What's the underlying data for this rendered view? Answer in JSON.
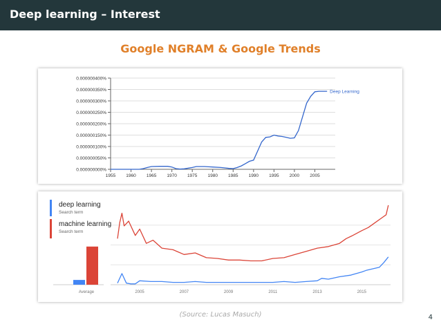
{
  "header": {
    "title": "Deep learning – Interest"
  },
  "subtitle": "Google NGRAM & Google Trends",
  "chart_data": [
    {
      "type": "line",
      "title": "",
      "xlabel": "",
      "ylabel": "",
      "x_ticks": [
        "1955",
        "1960",
        "1965",
        "1970",
        "1975",
        "1980",
        "1985",
        "1990",
        "1995",
        "2000",
        "2005"
      ],
      "y_ticks": [
        "0.000000000%",
        "0.000000050%",
        "0.000000100%",
        "0.000000150%",
        "0.000000200%",
        "0.000000250%",
        "0.000000300%",
        "0.000000350%",
        "0.000000400%"
      ],
      "xlim": [
        1955,
        2010
      ],
      "ylim": [
        0,
        4e-07
      ],
      "series": [
        {
          "name": "Deep Learning",
          "color": "#3366cc",
          "x": [
            1955,
            1962,
            1963,
            1964,
            1965,
            1967,
            1969,
            1970,
            1971,
            1972,
            1973,
            1975,
            1976,
            1977,
            1978,
            1979,
            1980,
            1982,
            1983,
            1984,
            1985,
            1986,
            1987,
            1988,
            1989,
            1990,
            1991,
            1992,
            1993,
            1994,
            1995,
            1996,
            1997,
            1998,
            1999,
            2000,
            2001,
            2002,
            2003,
            2004,
            2005,
            2006,
            2008
          ],
          "y": [
            0,
            0,
            3e-09,
            8e-09,
            1.2e-08,
            1.3e-08,
            1.3e-08,
            1e-08,
            3e-09,
            1e-09,
            2e-09,
            8e-09,
            1.2e-08,
            1.2e-08,
            1.2e-08,
            1.1e-08,
            1e-08,
            8e-09,
            6e-09,
            4e-09,
            3e-09,
            8e-09,
            1.5e-08,
            2.5e-08,
            3.5e-08,
            4e-08,
            8e-08,
            1.2e-07,
            1.4e-07,
            1.42e-07,
            1.5e-07,
            1.46e-07,
            1.44e-07,
            1.4e-07,
            1.36e-07,
            1.38e-07,
            1.7e-07,
            2.3e-07,
            2.9e-07,
            3.2e-07,
            3.4e-07,
            3.42e-07,
            3.42e-07
          ]
        }
      ]
    },
    {
      "type": "line",
      "title": "",
      "x_ticks": [
        "2005",
        "2007",
        "2009",
        "2011",
        "2013",
        "2015"
      ],
      "xlim": [
        2004.0,
        2016.3
      ],
      "ylim": [
        0,
        100
      ],
      "average_bars": {
        "label": "Average",
        "values": [
          6,
          48
        ]
      },
      "series": [
        {
          "name": "deep learning",
          "sublabel": "Search term",
          "color": "#4285f4",
          "x": [
            2004.0,
            2004.2,
            2004.4,
            2004.6,
            2004.8,
            2005.0,
            2005.5,
            2006.0,
            2006.5,
            2007.0,
            2007.5,
            2008.0,
            2008.5,
            2009.0,
            2009.5,
            2010.0,
            2010.5,
            2011.0,
            2011.5,
            2012.0,
            2012.5,
            2013.0,
            2013.2,
            2013.5,
            2014.0,
            2014.5,
            2015.0,
            2015.2,
            2015.5,
            2015.8,
            2016.0,
            2016.2
          ],
          "y": [
            2,
            14,
            2,
            1,
            1,
            5,
            4,
            4,
            3,
            3,
            4,
            3,
            3,
            3,
            3,
            3,
            3,
            3,
            4,
            3,
            4,
            5,
            8,
            7,
            10,
            12,
            16,
            18,
            20,
            22,
            28,
            35
          ]
        },
        {
          "name": "machine learning",
          "sublabel": "Search term",
          "color": "#db4437",
          "x": [
            2004.0,
            2004.1,
            2004.2,
            2004.3,
            2004.5,
            2004.8,
            2005.0,
            2005.3,
            2005.6,
            2006.0,
            2006.5,
            2007.0,
            2007.5,
            2008.0,
            2008.5,
            2009.0,
            2009.5,
            2010.0,
            2010.5,
            2011.0,
            2011.5,
            2012.0,
            2012.5,
            2013.0,
            2013.5,
            2014.0,
            2014.3,
            2014.6,
            2015.0,
            2015.3,
            2015.6,
            2015.9,
            2016.1,
            2016.2
          ],
          "y": [
            58,
            78,
            90,
            74,
            80,
            62,
            70,
            52,
            56,
            46,
            44,
            38,
            40,
            34,
            33,
            31,
            31,
            30,
            30,
            33,
            34,
            38,
            42,
            46,
            48,
            52,
            58,
            62,
            68,
            72,
            78,
            84,
            88,
            100
          ]
        }
      ]
    }
  ],
  "source": "(Source: Lucas Masuch)",
  "page_number": "4"
}
